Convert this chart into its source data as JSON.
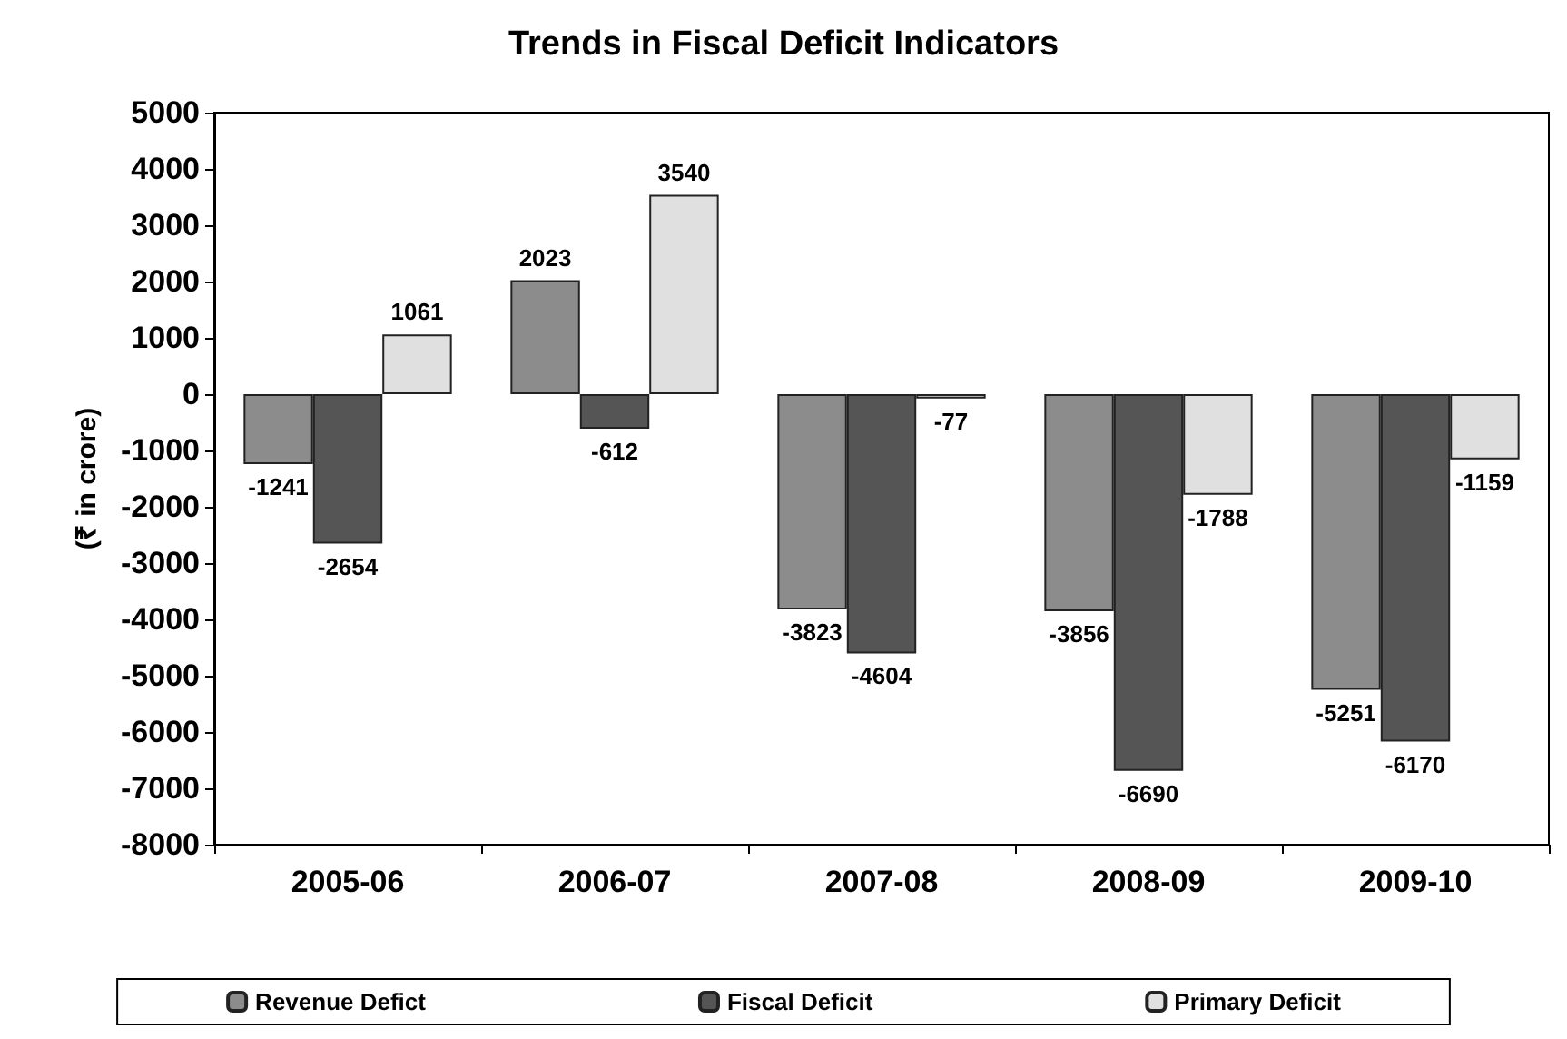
{
  "chart_data": {
    "type": "bar",
    "title": "Trends in Fiscal Deficit Indicators",
    "ylabel": "(₹ in crore)",
    "categories": [
      "2005-06",
      "2006-07",
      "2007-08",
      "2008-09",
      "2009-10"
    ],
    "series": [
      {
        "name": "Revenue Defict",
        "color": "#8c8c8c",
        "values": [
          -1241,
          2023,
          -3823,
          -3856,
          -5251
        ]
      },
      {
        "name": "Fiscal Deficit",
        "color": "#555555",
        "values": [
          -2654,
          -612,
          -4604,
          -6690,
          -6170
        ]
      },
      {
        "name": "Primary Deficit",
        "color": "#e0e0e0",
        "values": [
          1061,
          3540,
          -77,
          -1788,
          -1159
        ]
      }
    ],
    "ylim": [
      -8000,
      5000
    ],
    "yticks": [
      -8000,
      -7000,
      -6000,
      -5000,
      -4000,
      -3000,
      -2000,
      -1000,
      0,
      1000,
      2000,
      3000,
      4000,
      5000
    ],
    "data_labels": true,
    "grid": false,
    "legend": "bottom"
  }
}
